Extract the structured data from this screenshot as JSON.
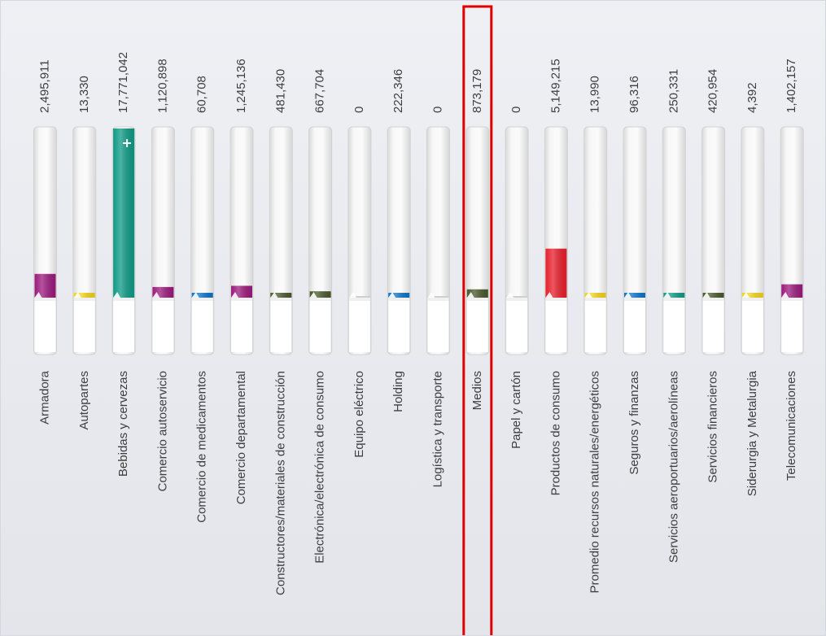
{
  "chart_data": {
    "type": "bar",
    "highlight": "Medios",
    "highlight_color": "#e00000",
    "ylim": [
      0,
      17771042
    ],
    "categories": [
      "Armadora",
      "Autopartes",
      "Bebidas y cervezas",
      "Comercio autoservicio",
      "Comercio de medicamentos",
      "Comercio departamental",
      "Constructores/materiales de construcción",
      "Electrónica/electrónica de consumo",
      "Equipo eléctrico",
      "Holding",
      "Logística y transporte",
      "Medios",
      "Papel y cartón",
      "Productos de consumo",
      "Promedio recursos naturales/energéticos",
      "Seguros y finanzas",
      "Servicios aeroportuarios/aerolíneas",
      "Servicios financieros",
      "Siderurgia y Metalurgia",
      "Telecomunicaciones"
    ],
    "values": [
      2495911,
      13330,
      17771042,
      1120898,
      60708,
      1245136,
      481430,
      667704,
      0,
      222346,
      0,
      873179,
      0,
      5149215,
      13990,
      96316,
      250331,
      420954,
      4392,
      1402157
    ],
    "value_labels": [
      "2,495,911",
      "13,330",
      "17,771,042",
      "1,120,898",
      "60,708",
      "1,245,136",
      "481,430",
      "667,704",
      "0",
      "222,346",
      "0",
      "873,179",
      "0",
      "5,149,215",
      "13,990",
      "96,316",
      "250,331",
      "420,954",
      "4,392",
      "1,402,157"
    ],
    "colors": [
      "#9b1a7d",
      "#f2d31b",
      "#0f9a86",
      "#9b1a7d",
      "#0d74c7",
      "#9b1a7d",
      "#48592c",
      "#48592c",
      "#cfcfcf",
      "#0d74c7",
      "#cfcfcf",
      "#48592c",
      "#cfcfcf",
      "#e71f2b",
      "#f2d31b",
      "#0d74c7",
      "#0f9a86",
      "#48592c",
      "#f2d31b",
      "#9b1a7d"
    ]
  }
}
